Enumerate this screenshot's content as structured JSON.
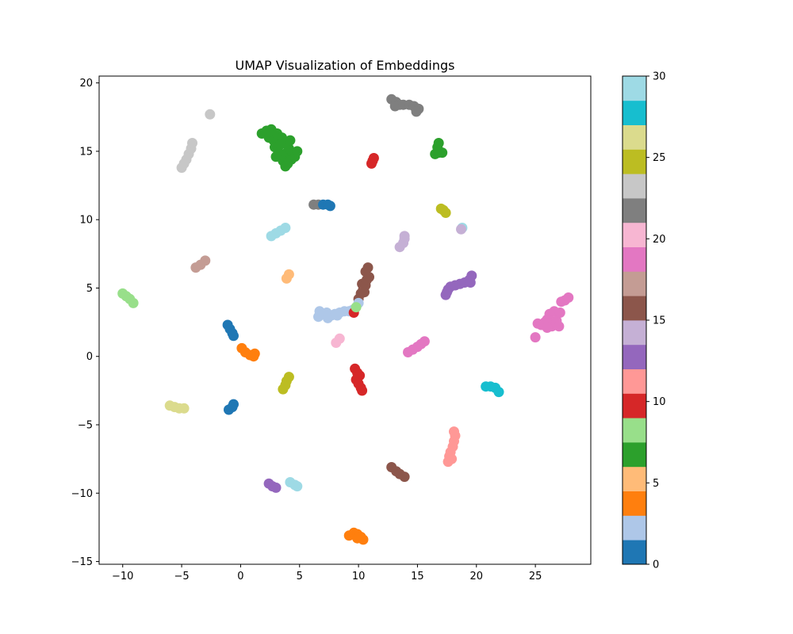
{
  "chart_data": {
    "type": "scatter",
    "title": "UMAP Visualization of Embeddings",
    "xlabel": "",
    "ylabel": "",
    "xlim": [
      -12,
      29.7
    ],
    "ylim": [
      -15.2,
      20.5
    ],
    "x_ticks": [
      -10,
      -5,
      0,
      5,
      10,
      15,
      20,
      25
    ],
    "y_ticks": [
      -15,
      -10,
      -5,
      0,
      5,
      10,
      15,
      20
    ],
    "x_tick_labels": [
      "−10",
      "−5",
      "0",
      "5",
      "10",
      "15",
      "20",
      "25"
    ],
    "y_tick_labels": [
      "−15",
      "−10",
      "−5",
      "0",
      "5",
      "10",
      "15",
      "20"
    ],
    "grid": false,
    "legend": "none",
    "colormap": "tab20",
    "colorbar": {
      "range": [
        0,
        30
      ],
      "ticks": [
        0,
        5,
        10,
        15,
        20,
        25,
        30
      ],
      "tick_labels": [
        "0",
        "5",
        "10",
        "15",
        "20",
        "25",
        "30"
      ],
      "bands": [
        "#1f77b4",
        "#aec7e8",
        "#ff7f0e",
        "#ffbb78",
        "#2ca02c",
        "#98df8a",
        "#d62728",
        "#ff9896",
        "#9467bd",
        "#c5b0d5",
        "#8c564b",
        "#c49c94",
        "#e377c2",
        "#f7b6d2",
        "#7f7f7f",
        "#c7c7c7",
        "#bcbd22",
        "#dbdb8d",
        "#17becf",
        "#9edae5"
      ]
    },
    "clusters": [
      {
        "color": "#2ca02c",
        "points": [
          [
            1.8,
            16.3
          ],
          [
            2.2,
            16.5
          ],
          [
            2.6,
            16.6
          ],
          [
            2.4,
            16.0
          ],
          [
            2.8,
            15.8
          ],
          [
            3.1,
            16.3
          ],
          [
            3.5,
            16.0
          ],
          [
            2.9,
            15.3
          ],
          [
            3.4,
            15.5
          ],
          [
            3.8,
            15.6
          ],
          [
            3.2,
            14.9
          ],
          [
            3.7,
            14.8
          ],
          [
            4.1,
            15.2
          ],
          [
            4.4,
            14.9
          ],
          [
            3.6,
            14.3
          ],
          [
            4.0,
            14.1
          ],
          [
            4.3,
            14.4
          ],
          [
            3.8,
            13.9
          ],
          [
            4.6,
            14.6
          ],
          [
            4.8,
            15.0
          ],
          [
            4.2,
            15.8
          ],
          [
            3.0,
            14.6
          ]
        ]
      },
      {
        "color": "#2ca02c",
        "points": [
          [
            16.5,
            14.8
          ],
          [
            16.8,
            14.9
          ],
          [
            17.1,
            14.9
          ],
          [
            16.7,
            15.3
          ],
          [
            16.8,
            15.6
          ]
        ]
      },
      {
        "color": "#7f7f7f",
        "points": [
          [
            12.8,
            18.8
          ],
          [
            13.2,
            18.6
          ],
          [
            13.5,
            18.4
          ],
          [
            13.1,
            18.3
          ],
          [
            13.8,
            18.4
          ],
          [
            14.3,
            18.4
          ],
          [
            14.7,
            18.3
          ],
          [
            15.1,
            18.1
          ],
          [
            14.9,
            17.9
          ]
        ]
      },
      {
        "color": "#7f7f7f",
        "points": [
          [
            6.2,
            11.1
          ],
          [
            6.6,
            11.1
          ]
        ]
      },
      {
        "color": "#c7c7c7",
        "points": [
          [
            -2.6,
            17.7
          ]
        ]
      },
      {
        "color": "#c7c7c7",
        "points": [
          [
            -5.0,
            13.8
          ],
          [
            -4.8,
            14.1
          ],
          [
            -4.6,
            14.4
          ],
          [
            -4.4,
            14.8
          ],
          [
            -4.2,
            15.2
          ],
          [
            -4.1,
            15.6
          ]
        ]
      },
      {
        "color": "#d62728",
        "points": [
          [
            11.1,
            14.1
          ],
          [
            11.2,
            14.3
          ],
          [
            11.3,
            14.5
          ]
        ]
      },
      {
        "color": "#1f77b4",
        "points": [
          [
            7.0,
            11.1
          ],
          [
            7.4,
            11.1
          ],
          [
            7.6,
            11.0
          ]
        ]
      },
      {
        "color": "#bcbd22",
        "points": [
          [
            17.0,
            10.8
          ],
          [
            17.2,
            10.7
          ],
          [
            17.4,
            10.5
          ]
        ]
      },
      {
        "color": "#bcbd22",
        "points": [
          [
            3.6,
            -2.4
          ],
          [
            3.8,
            -2.1
          ],
          [
            3.9,
            -1.8
          ],
          [
            4.1,
            -1.5
          ]
        ]
      },
      {
        "color": "#9edae5",
        "points": [
          [
            2.6,
            8.8
          ],
          [
            3.0,
            9.0
          ],
          [
            3.4,
            9.2
          ],
          [
            3.8,
            9.4
          ]
        ]
      },
      {
        "color": "#9edae5",
        "points": [
          [
            4.2,
            -9.2
          ],
          [
            4.6,
            -9.4
          ],
          [
            4.8,
            -9.5
          ]
        ]
      },
      {
        "color": "#9edae5",
        "points": [
          [
            18.8,
            9.4
          ]
        ]
      },
      {
        "color": "#c5b0d5",
        "points": [
          [
            13.5,
            8.0
          ],
          [
            13.8,
            8.3
          ],
          [
            13.9,
            8.6
          ],
          [
            13.9,
            8.8
          ]
        ]
      },
      {
        "color": "#c5b0d5",
        "points": [
          [
            18.7,
            9.3
          ]
        ]
      },
      {
        "color": "#c49c94",
        "points": [
          [
            -3.8,
            6.5
          ],
          [
            -3.4,
            6.7
          ],
          [
            -3.0,
            7.0
          ]
        ]
      },
      {
        "color": "#ffbb78",
        "points": [
          [
            3.9,
            5.7
          ],
          [
            4.1,
            6.0
          ]
        ]
      },
      {
        "color": "#8c564b",
        "points": [
          [
            10.0,
            4.2
          ],
          [
            10.2,
            4.6
          ],
          [
            10.4,
            4.9
          ],
          [
            10.3,
            5.3
          ],
          [
            10.6,
            5.2
          ],
          [
            10.7,
            5.6
          ],
          [
            10.9,
            5.8
          ],
          [
            10.6,
            6.2
          ],
          [
            10.8,
            6.5
          ],
          [
            10.5,
            4.7
          ]
        ]
      },
      {
        "color": "#8c564b",
        "points": [
          [
            12.8,
            -8.1
          ],
          [
            13.2,
            -8.4
          ],
          [
            13.5,
            -8.6
          ],
          [
            13.9,
            -8.8
          ]
        ]
      },
      {
        "color": "#9467bd",
        "points": [
          [
            17.4,
            4.5
          ],
          [
            17.6,
            4.9
          ],
          [
            17.8,
            5.1
          ],
          [
            18.2,
            5.2
          ],
          [
            18.6,
            5.3
          ],
          [
            19.0,
            5.4
          ],
          [
            19.4,
            5.6
          ],
          [
            19.6,
            5.9
          ],
          [
            19.5,
            5.4
          ],
          [
            17.5,
            4.7
          ]
        ]
      },
      {
        "color": "#9467bd",
        "points": [
          [
            2.4,
            -9.3
          ],
          [
            2.7,
            -9.5
          ],
          [
            3.0,
            -9.6
          ]
        ]
      },
      {
        "color": "#e377c2",
        "points": [
          [
            25.0,
            1.4
          ],
          [
            25.2,
            2.4
          ],
          [
            25.5,
            2.3
          ],
          [
            25.8,
            2.5
          ],
          [
            26.0,
            2.7
          ],
          [
            26.2,
            3.1
          ],
          [
            26.4,
            2.2
          ],
          [
            26.6,
            3.3
          ],
          [
            26.8,
            2.6
          ],
          [
            27.0,
            2.2
          ],
          [
            27.1,
            3.2
          ],
          [
            27.2,
            4.0
          ],
          [
            27.5,
            4.1
          ],
          [
            27.8,
            4.3
          ],
          [
            26.0,
            2.1
          ]
        ]
      },
      {
        "color": "#aec7e8",
        "points": [
          [
            6.6,
            2.9
          ],
          [
            6.9,
            3.1
          ],
          [
            7.3,
            3.2
          ],
          [
            7.7,
            3.0
          ],
          [
            8.0,
            3.1
          ],
          [
            8.4,
            3.2
          ],
          [
            8.8,
            3.3
          ],
          [
            9.2,
            3.3
          ],
          [
            9.5,
            3.4
          ],
          [
            6.7,
            3.3
          ],
          [
            7.4,
            2.8
          ],
          [
            8.2,
            3.0
          ]
        ]
      },
      {
        "color": "#aec7e8",
        "points": [
          [
            10.0,
            3.9
          ]
        ]
      },
      {
        "color": "#d62728",
        "points": [
          [
            9.6,
            3.2
          ]
        ]
      },
      {
        "color": "#98df8a",
        "points": [
          [
            9.8,
            3.6
          ]
        ]
      },
      {
        "color": "#98df8a",
        "points": [
          [
            -10.0,
            4.6
          ],
          [
            -9.7,
            4.4
          ],
          [
            -9.4,
            4.2
          ],
          [
            -9.1,
            3.9
          ]
        ]
      },
      {
        "color": "#f7b6d2",
        "points": [
          [
            8.1,
            1.0
          ],
          [
            8.4,
            1.3
          ]
        ]
      },
      {
        "color": "#e377c2",
        "points": [
          [
            14.2,
            0.3
          ],
          [
            14.6,
            0.5
          ],
          [
            15.0,
            0.7
          ],
          [
            15.3,
            0.9
          ],
          [
            15.6,
            1.1
          ]
        ]
      },
      {
        "color": "#1f77b4",
        "points": [
          [
            -1.1,
            2.3
          ],
          [
            -0.9,
            2.0
          ],
          [
            -0.7,
            1.7
          ],
          [
            -0.6,
            1.5
          ]
        ]
      },
      {
        "color": "#1f77b4",
        "points": [
          [
            -1.0,
            -3.9
          ],
          [
            -0.7,
            -3.7
          ],
          [
            -0.6,
            -3.5
          ]
        ]
      },
      {
        "color": "#ff7f0e",
        "points": [
          [
            0.1,
            0.6
          ],
          [
            0.4,
            0.3
          ],
          [
            0.8,
            0.1
          ],
          [
            1.1,
            0.0
          ],
          [
            1.2,
            0.2
          ]
        ]
      },
      {
        "color": "#ff7f0e",
        "points": [
          [
            9.2,
            -13.1
          ],
          [
            9.6,
            -12.9
          ],
          [
            9.9,
            -13.0
          ],
          [
            10.2,
            -13.2
          ],
          [
            10.4,
            -13.4
          ],
          [
            9.9,
            -13.3
          ]
        ]
      },
      {
        "color": "#d62728",
        "points": [
          [
            9.7,
            -0.9
          ],
          [
            9.9,
            -1.2
          ],
          [
            10.1,
            -1.4
          ],
          [
            9.8,
            -1.7
          ],
          [
            10.0,
            -2.0
          ],
          [
            10.2,
            -2.3
          ],
          [
            10.3,
            -2.5
          ]
        ]
      },
      {
        "color": "#17becf",
        "points": [
          [
            20.8,
            -2.2
          ],
          [
            21.2,
            -2.2
          ],
          [
            21.6,
            -2.3
          ],
          [
            21.9,
            -2.6
          ]
        ]
      },
      {
        "color": "#dbdb8d",
        "points": [
          [
            -6.0,
            -3.6
          ],
          [
            -5.6,
            -3.7
          ],
          [
            -5.2,
            -3.8
          ],
          [
            -4.8,
            -3.8
          ]
        ]
      },
      {
        "color": "#ff9896",
        "points": [
          [
            17.6,
            -7.7
          ],
          [
            17.9,
            -7.5
          ],
          [
            17.8,
            -7.0
          ],
          [
            18.0,
            -6.6
          ],
          [
            18.1,
            -6.2
          ],
          [
            18.2,
            -5.8
          ],
          [
            18.1,
            -5.5
          ],
          [
            17.7,
            -7.3
          ]
        ]
      }
    ]
  }
}
